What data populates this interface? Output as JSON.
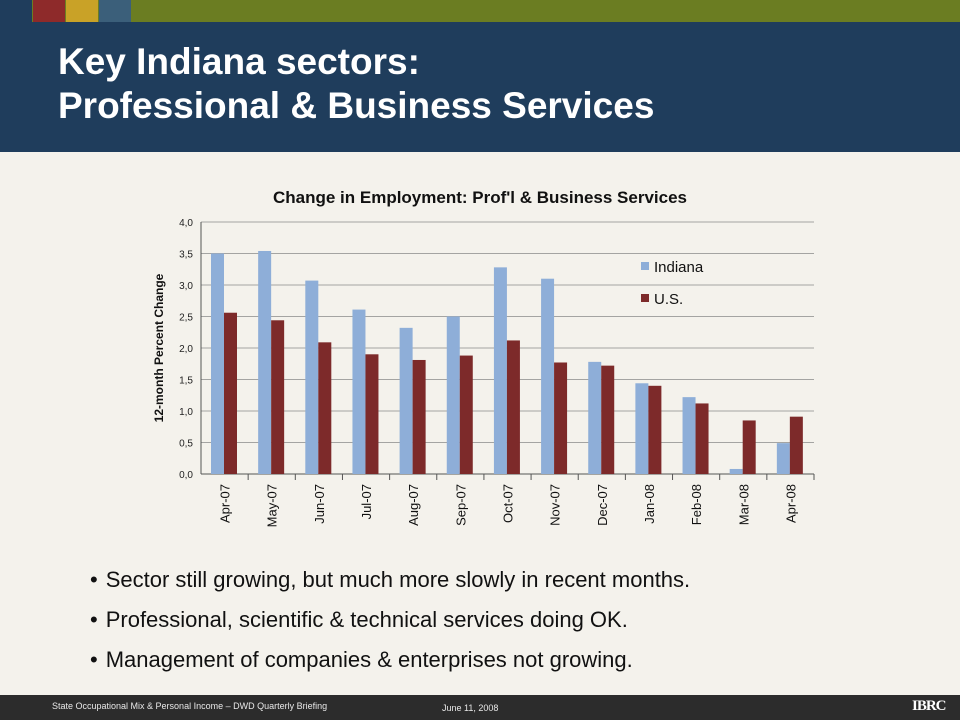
{
  "slide": {
    "title_line1": "Key Indiana sectors:",
    "title_line2": "Professional & Business Services",
    "bullets": [
      "Sector still growing, but much more slowly in recent months.",
      "Professional, scientific & technical services doing OK.",
      "Management of companies & enterprises not growing."
    ]
  },
  "footer": {
    "left": "State Occupational Mix & Personal Income – DWD Quarterly Briefing",
    "date": "June 11, 2008",
    "logo": "IBRC"
  },
  "colors": {
    "title_bar": "#1f3d5c",
    "top_strip": "#6b7d22",
    "strip_squares": [
      "#1f3d5c",
      "#8e2a2a",
      "#c9a227",
      "#3b5f7a"
    ],
    "indiana": "#8eaed8",
    "us": "#7d2a2a"
  },
  "chart_data": {
    "type": "bar",
    "title": "Change in Employment: Prof'l & Business Services",
    "xlabel": "",
    "ylabel": "12-month Percent Change",
    "ylim": [
      0,
      4
    ],
    "yticks": [
      "0,0",
      "0,5",
      "1,0",
      "1,5",
      "2,0",
      "2,5",
      "3,0",
      "3,5",
      "4,0"
    ],
    "grid": true,
    "legend_position": "top-right",
    "categories": [
      "Apr-07",
      "May-07",
      "Jun-07",
      "Jul-07",
      "Aug-07",
      "Sep-07",
      "Oct-07",
      "Nov-07",
      "Dec-07",
      "Jan-08",
      "Feb-08",
      "Mar-08",
      "Apr-08"
    ],
    "series": [
      {
        "name": "Indiana",
        "values": [
          3.5,
          3.54,
          3.07,
          2.61,
          2.32,
          2.5,
          3.28,
          3.1,
          1.78,
          1.44,
          1.22,
          0.08,
          0.49
        ]
      },
      {
        "name": "U.S.",
        "values": [
          2.56,
          2.44,
          2.09,
          1.9,
          1.81,
          1.88,
          2.12,
          1.77,
          1.72,
          1.4,
          1.12,
          0.85,
          0.91
        ]
      }
    ]
  }
}
